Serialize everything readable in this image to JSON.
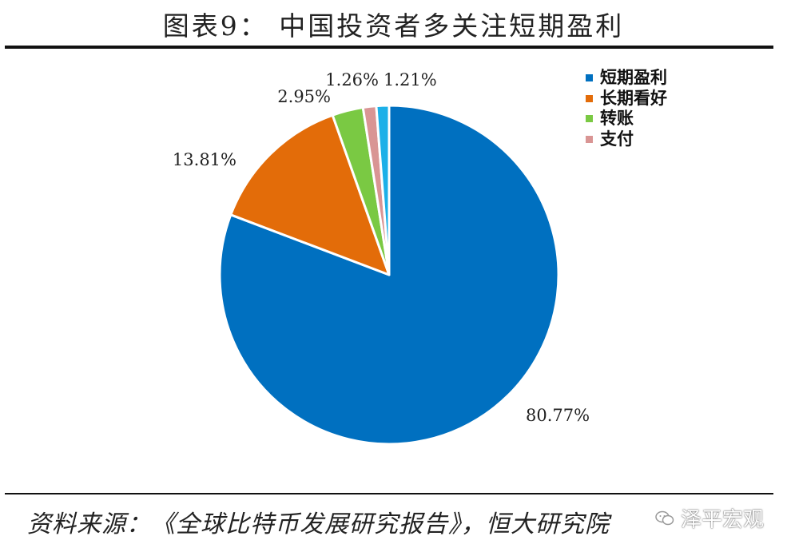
{
  "title": "图表9： 中国投资者多关注短期盈利",
  "source": "资料来源：《全球比特币发展研究报告》，恒大研究院",
  "watermark": "泽平宏观",
  "chart_data": {
    "type": "pie",
    "title": "图表9： 中国投资者多关注短期盈利",
    "start_angle_deg": 0,
    "direction": "clockwise",
    "slices": [
      {
        "label": "短期盈利",
        "value": 80.77,
        "value_label": "80.77%",
        "color": "#0070C0"
      },
      {
        "label": "长期看好",
        "value": 13.81,
        "value_label": "13.81%",
        "color": "#E36C09"
      },
      {
        "label": "转账",
        "value": 2.95,
        "value_label": "2.95%",
        "color": "#7AC943"
      },
      {
        "label": "支付",
        "value": 1.26,
        "value_label": "1.26%",
        "color": "#D99594"
      },
      {
        "label": "",
        "value": 1.21,
        "value_label": "1.21%",
        "color": "#1CB0E8"
      }
    ],
    "legend": {
      "position": "top-right",
      "entries": [
        "短期盈利",
        "长期看好",
        "转账",
        "支付"
      ]
    }
  }
}
